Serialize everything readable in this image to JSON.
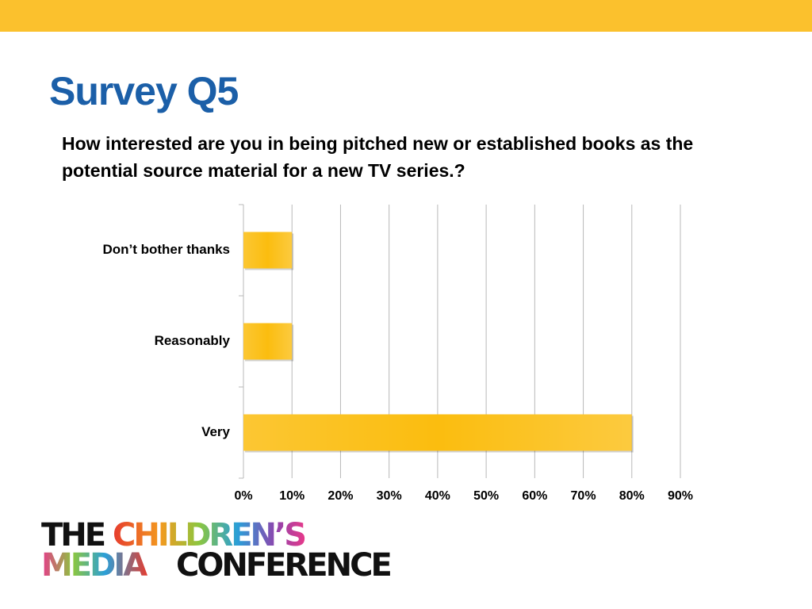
{
  "header": {
    "title": "Survey Q5"
  },
  "chart_data": {
    "type": "bar",
    "orientation": "horizontal",
    "subtitle": "How interested are you in being pitched new or established books as the potential source material for a new TV series.?",
    "categories": [
      "Don’t bother thanks",
      "Reasonably",
      "Very"
    ],
    "values": [
      10,
      10,
      80
    ],
    "color": "#fbbd0f",
    "xlim": [
      0,
      90
    ],
    "xticks": [
      {
        "value": 0,
        "label": "0%"
      },
      {
        "value": 10,
        "label": "10%"
      },
      {
        "value": 20,
        "label": "20%"
      },
      {
        "value": 30,
        "label": "30%"
      },
      {
        "value": 40,
        "label": "40%"
      },
      {
        "value": 50,
        "label": "50%"
      },
      {
        "value": 60,
        "label": "60%"
      },
      {
        "value": 70,
        "label": "70%"
      },
      {
        "value": 80,
        "label": "80%"
      },
      {
        "value": 90,
        "label": "90%"
      }
    ],
    "grid": true
  },
  "logo": {
    "words": [
      "THE",
      "CHILDREN’S",
      "MEDIA",
      "CONFERENCE"
    ]
  }
}
